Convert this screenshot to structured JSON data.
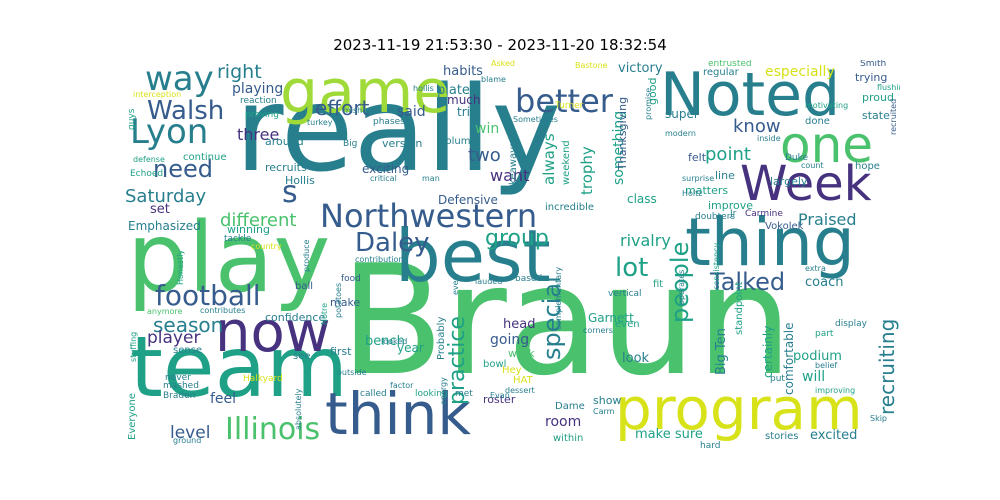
{
  "title": "2023-11-19 21:53:30 - 2023-11-20 18:32:54",
  "palette": {
    "dark_purple": "#46327e",
    "navy": "#365c8d",
    "teal_blue": "#277f8e",
    "teal": "#1fa187",
    "green": "#4ac16d",
    "light_green": "#a0da39",
    "yellow": "#d8e219"
  },
  "words": [
    {
      "text": "Braun",
      "color": "green"
    },
    {
      "text": "really",
      "color": "teal_blue"
    },
    {
      "text": "play",
      "color": "green"
    },
    {
      "text": "team",
      "color": "teal"
    },
    {
      "text": "best",
      "color": "teal_blue"
    },
    {
      "text": "thing",
      "color": "teal_blue"
    },
    {
      "text": "game",
      "color": "light_green"
    },
    {
      "text": "Noted",
      "color": "teal_blue"
    },
    {
      "text": "think",
      "color": "navy"
    },
    {
      "text": "program",
      "color": "yellow"
    },
    {
      "text": "now",
      "color": "dark_purple"
    },
    {
      "text": "one",
      "color": "green"
    },
    {
      "text": "Week",
      "color": "dark_purple"
    },
    {
      "text": "Northwestern",
      "color": "navy"
    },
    {
      "text": "Lyon",
      "color": "teal_blue"
    },
    {
      "text": "way",
      "color": "teal_blue"
    },
    {
      "text": "Illinois",
      "color": "green"
    },
    {
      "text": "better",
      "color": "navy"
    },
    {
      "text": "football",
      "color": "navy"
    },
    {
      "text": "Walsh",
      "color": "navy"
    },
    {
      "text": "Daley",
      "color": "navy"
    },
    {
      "text": "s",
      "color": "navy"
    },
    {
      "text": "lot",
      "color": "teal"
    },
    {
      "text": "need",
      "color": "navy"
    },
    {
      "text": "Talked",
      "color": "navy"
    },
    {
      "text": "special",
      "color": "teal_blue"
    },
    {
      "text": "people",
      "color": "teal"
    },
    {
      "text": "group",
      "color": "teal"
    },
    {
      "text": "practice",
      "color": "teal"
    },
    {
      "text": "recruiting",
      "color": "teal_blue"
    },
    {
      "text": "season",
      "color": "teal_blue"
    },
    {
      "text": "Saturday",
      "color": "teal_blue"
    },
    {
      "text": "effort",
      "color": "navy"
    },
    {
      "text": "right",
      "color": "teal_blue"
    },
    {
      "text": "different",
      "color": "green"
    },
    {
      "text": "player",
      "color": "dark_purple"
    },
    {
      "text": "level",
      "color": "navy"
    },
    {
      "text": "two",
      "color": "navy"
    },
    {
      "text": "point",
      "color": "teal"
    },
    {
      "text": "know",
      "color": "navy"
    },
    {
      "text": "Praised",
      "color": "teal_blue"
    },
    {
      "text": "rivalry",
      "color": "teal"
    },
    {
      "text": "want",
      "color": "dark_purple"
    },
    {
      "text": "three",
      "color": "dark_purple"
    },
    {
      "text": "trophy",
      "color": "teal"
    },
    {
      "text": "always",
      "color": "teal"
    },
    {
      "text": "playing",
      "color": "navy"
    },
    {
      "text": "said",
      "color": "navy"
    },
    {
      "text": "win",
      "color": "green"
    },
    {
      "text": "something",
      "color": "teal"
    },
    {
      "text": "especially",
      "color": "yellow"
    },
    {
      "text": "victory",
      "color": "teal_blue"
    },
    {
      "text": "habits",
      "color": "navy"
    },
    {
      "text": "plate",
      "color": "teal_blue"
    },
    {
      "text": "much",
      "color": "dark_purple"
    },
    {
      "text": "trip",
      "color": "teal_blue"
    },
    {
      "text": "set",
      "color": "dark_purple"
    },
    {
      "text": "coach",
      "color": "teal_blue"
    },
    {
      "text": "will",
      "color": "teal"
    },
    {
      "text": "excited",
      "color": "teal_blue"
    },
    {
      "text": "feel",
      "color": "navy"
    },
    {
      "text": "make sure",
      "color": "teal"
    },
    {
      "text": "room",
      "color": "dark_purple"
    },
    {
      "text": "going",
      "color": "navy"
    },
    {
      "text": "bench",
      "color": "teal"
    },
    {
      "text": "head",
      "color": "dark_purple"
    },
    {
      "text": "Big Ten",
      "color": "teal_blue"
    },
    {
      "text": "look",
      "color": "teal_blue"
    },
    {
      "text": "podium",
      "color": "teal"
    },
    {
      "text": "certainly",
      "color": "teal"
    },
    {
      "text": "comfortable",
      "color": "teal_blue"
    },
    {
      "text": "Garnett",
      "color": "teal"
    },
    {
      "text": "exciting",
      "color": "navy"
    },
    {
      "text": "Defensive",
      "color": "navy"
    },
    {
      "text": "class",
      "color": "teal"
    },
    {
      "text": "Thanksgiving",
      "color": "navy"
    },
    {
      "text": "good",
      "color": "teal"
    },
    {
      "text": "super",
      "color": "teal_blue"
    },
    {
      "text": "Emphasized",
      "color": "teal_blue"
    },
    {
      "text": "winning",
      "color": "teal"
    },
    {
      "text": "around",
      "color": "teal_blue"
    },
    {
      "text": "recruits",
      "color": "teal_blue"
    },
    {
      "text": "Hollis",
      "color": "teal_blue"
    },
    {
      "text": "continue",
      "color": "teal"
    },
    {
      "text": "version",
      "color": "teal_blue"
    },
    {
      "text": "column",
      "color": "teal_blue"
    },
    {
      "text": "weekend",
      "color": "teal"
    },
    {
      "text": "takeaways",
      "color": "teal_blue"
    },
    {
      "text": "incredible",
      "color": "teal_blue"
    },
    {
      "text": "matters",
      "color": "teal"
    },
    {
      "text": "felt",
      "color": "navy"
    },
    {
      "text": "line",
      "color": "teal_blue"
    },
    {
      "text": "improve",
      "color": "teal"
    },
    {
      "text": "largely",
      "color": "teal_blue"
    },
    {
      "text": "done",
      "color": "teal_blue"
    },
    {
      "text": "state",
      "color": "teal_blue"
    },
    {
      "text": "proud",
      "color": "teal"
    },
    {
      "text": "trying",
      "color": "navy"
    },
    {
      "text": "hope",
      "color": "teal_blue"
    },
    {
      "text": "regular",
      "color": "teal_blue"
    },
    {
      "text": "entrusted",
      "color": "green"
    },
    {
      "text": "reaction",
      "color": "teal_blue"
    },
    {
      "text": "proving",
      "color": "teal"
    },
    {
      "text": "phases",
      "color": "teal_blue"
    },
    {
      "text": "guys",
      "color": "teal"
    },
    {
      "text": "confidence",
      "color": "teal_blue"
    },
    {
      "text": "make",
      "color": "navy"
    },
    {
      "text": "sense",
      "color": "teal_blue"
    },
    {
      "text": "first",
      "color": "teal_blue"
    },
    {
      "text": "see",
      "color": "teal_blue"
    },
    {
      "text": "never",
      "color": "teal_blue"
    },
    {
      "text": "ball",
      "color": "navy"
    },
    {
      "text": "year",
      "color": "teal"
    },
    {
      "text": "show",
      "color": "teal_blue"
    },
    {
      "text": "roster",
      "color": "dark_purple"
    },
    {
      "text": "work",
      "color": "green"
    },
    {
      "text": "bowl",
      "color": "teal"
    },
    {
      "text": "Probably",
      "color": "teal_blue"
    },
    {
      "text": "even",
      "color": "teal"
    },
    {
      "text": "stories",
      "color": "teal_blue"
    },
    {
      "text": "within",
      "color": "teal"
    },
    {
      "text": "Dame",
      "color": "teal_blue"
    },
    {
      "text": "Carm",
      "color": "teal_blue"
    },
    {
      "text": "HAT",
      "color": "yellow"
    },
    {
      "text": "Hey",
      "color": "yellow"
    },
    {
      "text": "Everyone",
      "color": "teal"
    },
    {
      "text": "Braden",
      "color": "teal_blue"
    },
    {
      "text": "Halkyard",
      "color": "yellow"
    },
    {
      "text": "mashed",
      "color": "teal_blue"
    },
    {
      "text": "potatoes",
      "color": "teal_blue"
    },
    {
      "text": "contributes",
      "color": "teal_blue"
    },
    {
      "text": "Notre",
      "color": "teal"
    },
    {
      "text": "looking",
      "color": "teal"
    },
    {
      "text": "called",
      "color": "teal_blue"
    },
    {
      "text": "outside",
      "color": "teal_blue"
    },
    {
      "text": "factor",
      "color": "teal_blue"
    },
    {
      "text": "looked",
      "color": "teal_blue"
    },
    {
      "text": "Evan",
      "color": "teal_blue"
    },
    {
      "text": "dessert",
      "color": "teal_blue"
    },
    {
      "text": "met",
      "color": "teal_blue"
    },
    {
      "text": "energy",
      "color": "teal_blue"
    },
    {
      "text": "Vokolek",
      "color": "navy"
    },
    {
      "text": "Carmine",
      "color": "dark_purple"
    },
    {
      "text": "Jr",
      "color": "teal_blue"
    },
    {
      "text": "doubters",
      "color": "teal_blue"
    },
    {
      "text": "Duke",
      "color": "teal_blue"
    },
    {
      "text": "Smith",
      "color": "navy"
    },
    {
      "text": "flushing",
      "color": "teal"
    },
    {
      "text": "recruited",
      "color": "navy"
    },
    {
      "text": "motivating",
      "color": "teal"
    },
    {
      "text": "inside",
      "color": "teal_blue"
    },
    {
      "text": "count",
      "color": "teal_blue"
    },
    {
      "text": "belief",
      "color": "teal_blue"
    },
    {
      "text": "improving",
      "color": "teal"
    },
    {
      "text": "Skip",
      "color": "teal_blue"
    },
    {
      "text": "hard",
      "color": "teal_blue"
    },
    {
      "text": "put",
      "color": "teal_blue"
    },
    {
      "text": "display",
      "color": "teal_blue"
    },
    {
      "text": "part",
      "color": "teal"
    },
    {
      "text": "extra",
      "color": "teal_blue"
    },
    {
      "text": "modern",
      "color": "teal_blue"
    },
    {
      "text": "surprise",
      "color": "teal_blue"
    },
    {
      "text": "Holtz",
      "color": "teal_blue"
    },
    {
      "text": "consistency",
      "color": "teal"
    },
    {
      "text": "standpoint",
      "color": "teal"
    },
    {
      "text": "vertical",
      "color": "teal_blue"
    },
    {
      "text": "fit",
      "color": "teal"
    },
    {
      "text": "based",
      "color": "teal_blue"
    },
    {
      "text": "complementary",
      "color": "teal_blue"
    },
    {
      "text": "corners",
      "color": "teal_blue"
    },
    {
      "text": "operates",
      "color": "teal_blue"
    },
    {
      "text": "every",
      "color": "teal_blue"
    },
    {
      "text": "lauded",
      "color": "teal_blue"
    },
    {
      "text": "contributions",
      "color": "teal_blue"
    },
    {
      "text": "produce",
      "color": "teal_blue"
    },
    {
      "text": "food",
      "color": "navy"
    },
    {
      "text": "man",
      "color": "teal_blue"
    },
    {
      "text": "critical",
      "color": "teal_blue"
    },
    {
      "text": "Big",
      "color": "teal_blue"
    },
    {
      "text": "mishap",
      "color": "teal_blue"
    },
    {
      "text": "turkey",
      "color": "teal_blue"
    },
    {
      "text": "interception",
      "color": "yellow"
    },
    {
      "text": "Echoed",
      "color": "teal"
    },
    {
      "text": "defense",
      "color": "teal"
    },
    {
      "text": "country",
      "color": "yellow"
    },
    {
      "text": "tackle",
      "color": "teal_blue"
    },
    {
      "text": "Honestly",
      "color": "teal"
    },
    {
      "text": "anymore",
      "color": "green"
    },
    {
      "text": "stuffing",
      "color": "teal"
    },
    {
      "text": "absolutely",
      "color": "teal_blue"
    },
    {
      "text": "ground",
      "color": "teal_blue"
    },
    {
      "text": "Asked",
      "color": "yellow"
    },
    {
      "text": "Bastone",
      "color": "yellow"
    },
    {
      "text": "Turner",
      "color": "yellow"
    },
    {
      "text": "Sometimes",
      "color": "teal_blue"
    },
    {
      "text": "promise",
      "color": "teal_blue"
    },
    {
      "text": "blame",
      "color": "teal_blue"
    },
    {
      "text": "hollis",
      "color": "teal_blue"
    }
  ]
}
